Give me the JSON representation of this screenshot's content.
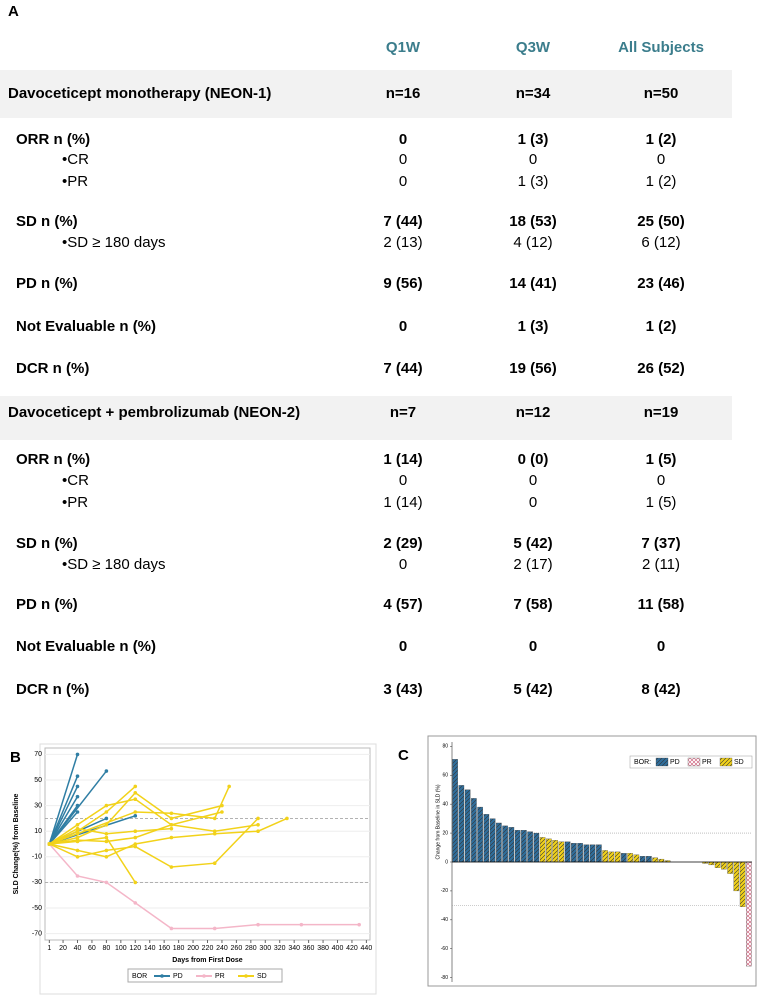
{
  "panels": [
    "A",
    "B",
    "C"
  ],
  "table": {
    "headers": [
      "Q1W",
      "Q3W",
      "All Subjects"
    ],
    "sections": [
      {
        "title": "Davoceticept monotherapy (NEON-1)",
        "n": [
          "n=16",
          "n=34",
          "n=50"
        ],
        "rows": [
          {
            "label": "ORR n (%)",
            "values": [
              "0",
              "1 (3)",
              "1 (2)"
            ],
            "sub": [
              {
                "label": "•CR",
                "values": [
                  "0",
                  "0",
                  "0"
                ]
              },
              {
                "label": "•PR",
                "values": [
                  "0",
                  "1 (3)",
                  "1 (2)"
                ]
              }
            ]
          },
          {
            "label": "SD n (%)",
            "values": [
              "7 (44)",
              "18 (53)",
              "25 (50)"
            ],
            "sub": [
              {
                "label": "•SD ≥ 180 days",
                "values": [
                  "2 (13)",
                  "4 (12)",
                  "6 (12)"
                ]
              }
            ]
          },
          {
            "label": "PD n (%)",
            "values": [
              "9 (56)",
              "14 (41)",
              "23 (46)"
            ],
            "sub": []
          },
          {
            "label": "Not Evaluable n (%)",
            "values": [
              "0",
              "1 (3)",
              "1 (2)"
            ],
            "sub": []
          },
          {
            "label": "DCR n (%)",
            "values": [
              "7 (44)",
              "19 (56)",
              "26 (52)"
            ],
            "sub": []
          }
        ]
      },
      {
        "title": "Davoceticept + pembrolizumab (NEON-2)",
        "n": [
          "n=7",
          "n=12",
          "n=19"
        ],
        "rows": [
          {
            "label": "ORR n (%)",
            "values": [
              "1 (14)",
              "0 (0)",
              "1 (5)"
            ],
            "sub": [
              {
                "label": "•CR",
                "values": [
                  "0",
                  "0",
                  "0"
                ]
              },
              {
                "label": "•PR",
                "values": [
                  "1 (14)",
                  "0",
                  "1 (5)"
                ]
              }
            ]
          },
          {
            "label": "SD n (%)",
            "values": [
              "2 (29)",
              "5 (42)",
              "7 (37)"
            ],
            "sub": [
              {
                "label": "•SD ≥ 180 days",
                "values": [
                  "0",
                  "2 (17)",
                  "2 (11)"
                ]
              }
            ]
          },
          {
            "label": "PD n (%)",
            "values": [
              "4 (57)",
              "7 (58)",
              "11 (58)"
            ],
            "sub": []
          },
          {
            "label": "Not Evaluable n (%)",
            "values": [
              "0",
              "0",
              "0"
            ],
            "sub": []
          },
          {
            "label": "DCR n (%)",
            "values": [
              "3 (43)",
              "5 (42)",
              "8 (42)"
            ],
            "sub": []
          }
        ]
      }
    ]
  },
  "chart_data": [
    {
      "type": "spider",
      "xlabel": "Days from First Dose",
      "ylabel": "SLD Change(%) from Baseline",
      "xlim": [
        -5,
        445
      ],
      "xticks": [
        1,
        20,
        40,
        60,
        80,
        100,
        120,
        140,
        160,
        180,
        200,
        220,
        240,
        260,
        280,
        300,
        320,
        340,
        360,
        380,
        400,
        420,
        440
      ],
      "ylim": [
        -75,
        75
      ],
      "yticks": [
        -70,
        -50,
        -30,
        -10,
        10,
        30,
        50,
        70
      ],
      "ref_lines": [
        20,
        -30
      ],
      "legend_title": "BOR",
      "legend": "bottom",
      "series": [
        {
          "name": "PD",
          "color": "#2f7ea4",
          "lines": [
            {
              "x": [
                1,
                40
              ],
              "y": [
                0,
                70
              ]
            },
            {
              "x": [
                1,
                40
              ],
              "y": [
                0,
                53
              ]
            },
            {
              "x": [
                1,
                40
              ],
              "y": [
                0,
                45
              ]
            },
            {
              "x": [
                1,
                40
              ],
              "y": [
                0,
                37
              ]
            },
            {
              "x": [
                1,
                40
              ],
              "y": [
                0,
                30
              ]
            },
            {
              "x": [
                1,
                80
              ],
              "y": [
                0,
                57
              ]
            },
            {
              "x": [
                1,
                40
              ],
              "y": [
                0,
                25
              ]
            },
            {
              "x": [
                1,
                80
              ],
              "y": [
                0,
                20
              ]
            },
            {
              "x": [
                1,
                120
              ],
              "y": [
                0,
                22
              ]
            }
          ]
        },
        {
          "name": "PR",
          "color": "#f4b6c8",
          "lines": [
            {
              "x": [
                1,
                40,
                80,
                120,
                170,
                230,
                290,
                350,
                430
              ],
              "y": [
                0,
                -25,
                -30,
                -46,
                -66,
                -66,
                -63,
                -63,
                -63
              ]
            }
          ]
        },
        {
          "name": "SD",
          "color": "#f2d21a",
          "lines": [
            {
              "x": [
                1,
                40,
                80,
                120
              ],
              "y": [
                0,
                10,
                25,
                45
              ]
            },
            {
              "x": [
                1,
                40,
                80,
                120,
                170,
                240
              ],
              "y": [
                0,
                5,
                15,
                40,
                20,
                30
              ]
            },
            {
              "x": [
                1,
                40,
                120,
                170,
                230,
                250
              ],
              "y": [
                0,
                8,
                25,
                24,
                20,
                45
              ]
            },
            {
              "x": [
                1,
                40,
                80,
                120,
                170,
                240
              ],
              "y": [
                0,
                15,
                30,
                35,
                15,
                25
              ]
            },
            {
              "x": [
                1,
                40,
                80,
                120
              ],
              "y": [
                0,
                2,
                5,
                -30
              ]
            },
            {
              "x": [
                1,
                40,
                80,
                120,
                170,
                230,
                290,
                330
              ],
              "y": [
                0,
                -5,
                -10,
                0,
                5,
                8,
                10,
                20
              ]
            },
            {
              "x": [
                1,
                40,
                80,
                120,
                170,
                230,
                290
              ],
              "y": [
                0,
                -10,
                -5,
                -2,
                -18,
                -15,
                20
              ]
            },
            {
              "x": [
                1,
                40,
                80,
                120,
                170,
                230,
                290
              ],
              "y": [
                0,
                3,
                2,
                5,
                15,
                10,
                15
              ]
            },
            {
              "x": [
                1,
                40,
                80,
                120,
                170
              ],
              "y": [
                0,
                12,
                8,
                10,
                12
              ]
            }
          ]
        }
      ]
    },
    {
      "type": "waterfall",
      "ylabel": "Change from Baseline in SLD (%)",
      "ylim": [
        -83,
        83
      ],
      "yticks": [
        -80,
        -60,
        -40,
        -20,
        0,
        20,
        40,
        60,
        80
      ],
      "ref_lines": [
        20,
        -30
      ],
      "legend_title": "BOR:",
      "legend": "top-right",
      "categories": [
        null,
        null,
        null,
        null,
        null,
        null,
        null,
        null,
        null,
        null,
        null,
        null,
        null,
        null,
        null,
        null,
        null,
        null,
        null,
        null,
        null,
        null,
        null,
        null,
        null,
        null,
        null,
        null,
        null,
        null,
        null,
        null,
        null,
        null,
        null,
        null,
        null,
        null,
        null,
        null,
        null,
        null,
        null,
        null,
        null,
        null,
        null,
        null
      ],
      "series": [
        {
          "name": "PD",
          "color": "#2f6e9c",
          "values": [
            71,
            53,
            50,
            44,
            38,
            33,
            30,
            27,
            25,
            24,
            22,
            22,
            21,
            20,
            null,
            null,
            null,
            null,
            14,
            13,
            13,
            12,
            12,
            12,
            null,
            null,
            null,
            6,
            null,
            null,
            4,
            4,
            null,
            null,
            null,
            null,
            null,
            null,
            null,
            null,
            null,
            null,
            null,
            null,
            null,
            null,
            null,
            null
          ]
        },
        {
          "name": "PR",
          "color": "#c9506e",
          "values": [
            null,
            null,
            null,
            null,
            null,
            null,
            null,
            null,
            null,
            null,
            null,
            null,
            null,
            null,
            null,
            null,
            null,
            null,
            null,
            null,
            null,
            null,
            null,
            null,
            null,
            null,
            null,
            null,
            null,
            null,
            null,
            null,
            null,
            null,
            null,
            null,
            null,
            null,
            null,
            null,
            null,
            null,
            null,
            null,
            null,
            null,
            null,
            -72
          ]
        },
        {
          "name": "SD",
          "color": "#f2d21a",
          "values": [
            null,
            null,
            null,
            null,
            null,
            null,
            null,
            null,
            null,
            null,
            null,
            null,
            null,
            null,
            17,
            16,
            15,
            14,
            null,
            null,
            null,
            null,
            null,
            null,
            8,
            7,
            7,
            null,
            6,
            5,
            null,
            null,
            3,
            2,
            1,
            0,
            0,
            0,
            0,
            0,
            -1,
            -2,
            -4,
            -5,
            -8,
            -20,
            -31,
            null
          ]
        }
      ]
    }
  ]
}
